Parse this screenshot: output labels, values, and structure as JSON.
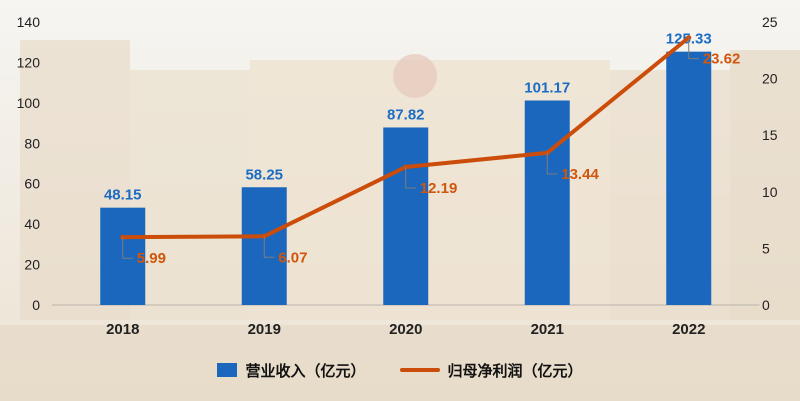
{
  "colors": {
    "bar": "#1b67bd",
    "line": "#cc4c0a",
    "bar_label": "#1b6cc4",
    "line_label": "#d0560e"
  },
  "legend": {
    "bar_label": "营业收入（亿元）",
    "line_label": "归母净利润（亿元）"
  },
  "chart_data": {
    "type": "bar",
    "categories": [
      "2018",
      "2019",
      "2020",
      "2021",
      "2022"
    ],
    "series": [
      {
        "name": "营业收入（亿元）",
        "type": "bar",
        "axis": "left",
        "values": [
          48.15,
          58.25,
          87.82,
          101.17,
          125.33
        ],
        "labels": [
          "48.15",
          "58.25",
          "87.82",
          "101.17",
          "125.33"
        ]
      },
      {
        "name": "归母净利润（亿元）",
        "type": "line",
        "axis": "right",
        "values": [
          5.99,
          6.07,
          12.19,
          13.44,
          23.62
        ],
        "labels": [
          "5.99",
          "6.07",
          "12.19",
          "13.44",
          "23.62"
        ]
      }
    ],
    "left_axis": {
      "ylim": [
        0,
        140
      ],
      "ticks": [
        "0",
        "20",
        "40",
        "60",
        "80",
        "100",
        "120",
        "140"
      ]
    },
    "right_axis": {
      "ylim": [
        0,
        25
      ],
      "ticks": [
        "0",
        "5",
        "10",
        "15",
        "20",
        "25"
      ]
    },
    "grid": false,
    "legend_position": "bottom"
  }
}
